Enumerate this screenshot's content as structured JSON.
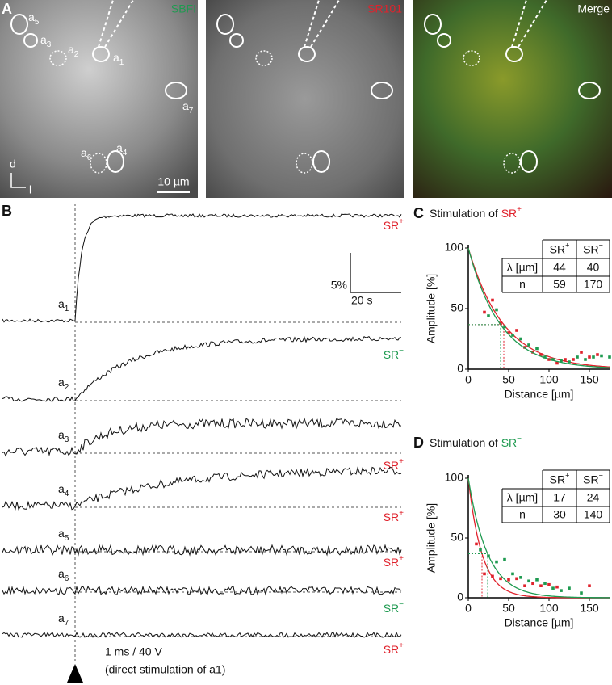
{
  "panel_a": {
    "label": "A",
    "images": [
      {
        "title": "SBFI",
        "color": "#1e9a50"
      },
      {
        "title": "SR101",
        "color": "#e0222c"
      },
      {
        "title": "Merge",
        "color": "#ffffff"
      }
    ],
    "cells": [
      {
        "base": "a",
        "index": "1"
      },
      {
        "base": "a",
        "index": "2"
      },
      {
        "base": "a",
        "index": "3"
      },
      {
        "base": "a",
        "index": "4"
      },
      {
        "base": "a",
        "index": "5"
      },
      {
        "base": "a",
        "index": "6"
      },
      {
        "base": "a",
        "index": "7"
      }
    ],
    "axis_d": "d",
    "axis_l": "l",
    "scale": "10 µm"
  },
  "panel_b": {
    "label": "B",
    "traces": [
      {
        "name": {
          "base": "a",
          "index": "1"
        },
        "type": {
          "base": "SR",
          "sup": "+"
        },
        "color": "#e0222c"
      },
      {
        "name": {
          "base": "a",
          "index": "2"
        },
        "type": {
          "base": "SR",
          "sup": "−"
        },
        "color": "#1e9a50"
      },
      {
        "name": {
          "base": "a",
          "index": "3"
        },
        "type": {
          "base": "SR",
          "sup": "+"
        },
        "color": "#e0222c"
      },
      {
        "name": {
          "base": "a",
          "index": "4"
        },
        "type": {
          "base": "SR",
          "sup": "+"
        },
        "color": "#e0222c"
      },
      {
        "name": {
          "base": "a",
          "index": "5"
        },
        "type": {
          "base": "SR",
          "sup": "+"
        },
        "color": "#e0222c"
      },
      {
        "name": {
          "base": "a",
          "index": "6"
        },
        "type": {
          "base": "SR",
          "sup": "−"
        },
        "color": "#1e9a50"
      },
      {
        "name": {
          "base": "a",
          "index": "7"
        },
        "type": {
          "base": "SR",
          "sup": "+"
        },
        "color": "#e0222c"
      }
    ],
    "scale_y": "5%",
    "scale_x": "20 s",
    "stimulus": "1 ms / 40 V",
    "note": "(direct stimulation of a1)"
  },
  "chart_data": [
    {
      "type": "scatter",
      "panel": "C",
      "title": "Stimulation of ",
      "title_type": {
        "base": "SR",
        "sup": "+",
        "color": "#e0222c"
      },
      "x_label": "Distance [µm]",
      "y_label": "Amplitude [%]",
      "xlim": [
        0,
        175
      ],
      "xticks": [
        0,
        50,
        100,
        150
      ],
      "ylim": [
        0,
        100
      ],
      "yticks": [
        0,
        50,
        100
      ],
      "series": [
        {
          "color": "#e0222c",
          "x": [
            20,
            30,
            40,
            50,
            60,
            70,
            80,
            90,
            100,
            110,
            120,
            130,
            140,
            150,
            160
          ],
          "values": [
            47,
            57,
            38,
            30,
            32,
            18,
            14,
            12,
            8,
            5,
            8,
            8,
            14,
            10,
            12
          ]
        },
        {
          "color": "#1e9a50",
          "x": [
            25,
            35,
            45,
            55,
            65,
            75,
            85,
            95,
            105,
            115,
            125,
            135,
            145,
            155,
            165,
            175
          ],
          "values": [
            44,
            49,
            35,
            28,
            25,
            20,
            17,
            10,
            8,
            7,
            6,
            10,
            8,
            10,
            11,
            10
          ]
        }
      ],
      "table": {
        "header": [
          {
            "base": "SR",
            "sup": "+",
            "color": "#e0222c"
          },
          {
            "base": "SR",
            "sup": "−",
            "color": "#1e9a50"
          }
        ],
        "rows": [
          {
            "label": "λ [µm]",
            "values": [
              44,
              40
            ]
          },
          {
            "label": "n",
            "values": [
              59,
              170
            ]
          }
        ]
      }
    },
    {
      "type": "scatter",
      "panel": "D",
      "title": "Stimulation of ",
      "title_type": {
        "base": "SR",
        "sup": "−",
        "color": "#1e9a50"
      },
      "x_label": "Distance [µm]",
      "y_label": "Amplitude [%]",
      "xlim": [
        0,
        175
      ],
      "xticks": [
        0,
        50,
        100,
        150
      ],
      "ylim": [
        0,
        100
      ],
      "yticks": [
        0,
        50,
        100
      ],
      "series": [
        {
          "color": "#e0222c",
          "x": [
            10,
            20,
            30,
            40,
            50,
            60,
            70,
            80,
            90,
            100,
            110,
            150
          ],
          "values": [
            45,
            20,
            18,
            16,
            15,
            16,
            10,
            12,
            10,
            11,
            9,
            10
          ]
        },
        {
          "color": "#1e9a50",
          "x": [
            15,
            25,
            35,
            45,
            55,
            65,
            75,
            85,
            95,
            105,
            115,
            125,
            140
          ],
          "values": [
            40,
            35,
            30,
            32,
            20,
            17,
            14,
            15,
            12,
            8,
            6,
            8,
            4
          ]
        }
      ],
      "table": {
        "header": [
          {
            "base": "SR",
            "sup": "+",
            "color": "#e0222c"
          },
          {
            "base": "SR",
            "sup": "−",
            "color": "#1e9a50"
          }
        ],
        "rows": [
          {
            "label": "λ [µm]",
            "values": [
              17,
              24
            ]
          },
          {
            "label": "n",
            "values": [
              30,
              140
            ]
          }
        ]
      }
    }
  ]
}
